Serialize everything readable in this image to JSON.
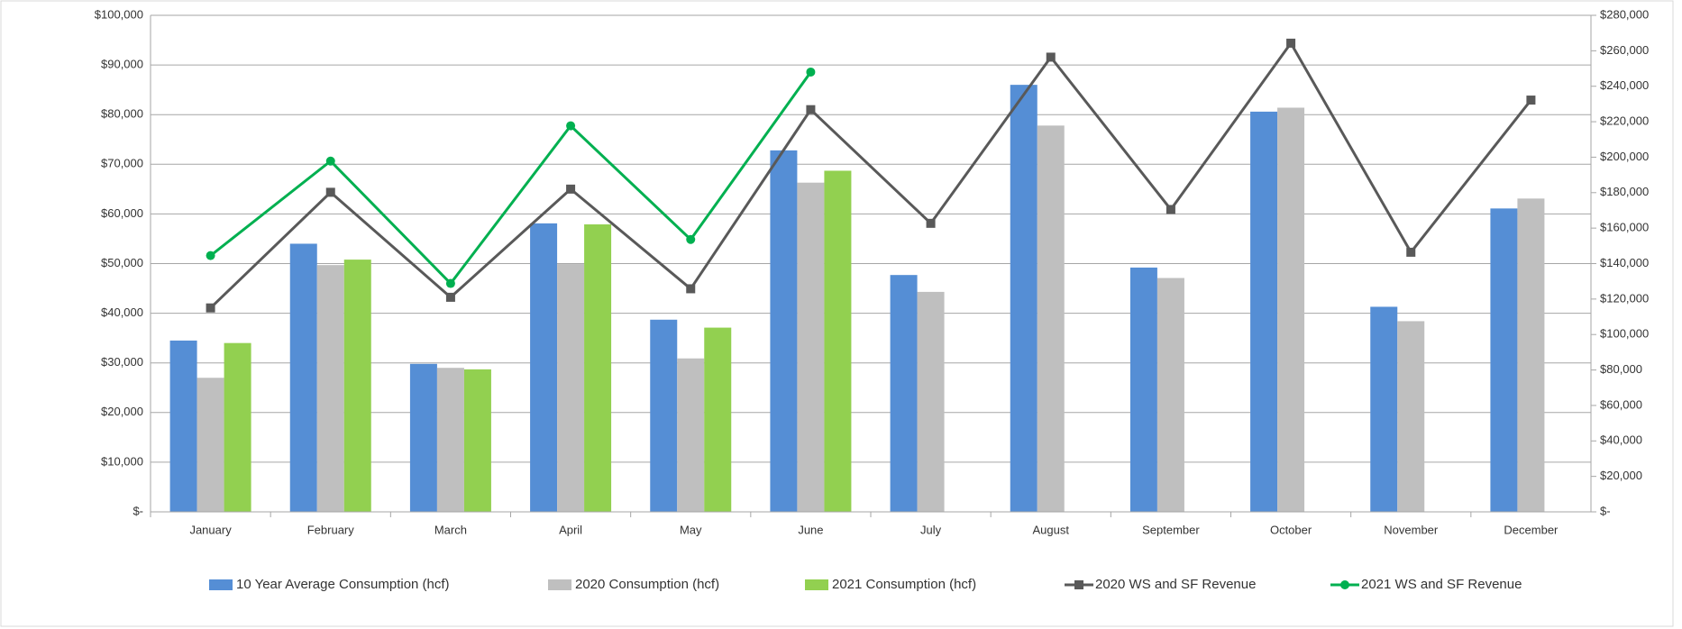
{
  "chart_data": {
    "type": "bar-line",
    "categories": [
      "January",
      "February",
      "March",
      "April",
      "May",
      "June",
      "July",
      "August",
      "September",
      "October",
      "November",
      "December"
    ],
    "series": [
      {
        "name": "10 Year Average Consumption (hcf)",
        "color": "#558ed5",
        "type": "bar",
        "values": [
          34500,
          54000,
          29800,
          58100,
          38700,
          72800,
          47700,
          86000,
          49200,
          80600,
          41300,
          61100
        ]
      },
      {
        "name": "2020 Consumption (hcf)",
        "color": "#bfbfbf",
        "type": "bar",
        "values": [
          27000,
          49700,
          29000,
          49900,
          30900,
          66300,
          44300,
          77800,
          47100,
          81400,
          38400,
          63100
        ]
      },
      {
        "name": "2021 Consumption (hcf)",
        "color": "#92d050",
        "type": "bar",
        "values": [
          34000,
          50800,
          28700,
          57900,
          37100,
          68700,
          null,
          null,
          null,
          null,
          null,
          null
        ]
      },
      {
        "name": "2020 WS and SF Revenue",
        "color": "#595959",
        "type": "line",
        "axis": "y2",
        "marker": "square",
        "values": [
          115000,
          180200,
          121000,
          182000,
          125800,
          226800,
          162700,
          256400,
          170500,
          264300,
          146400,
          232200
        ]
      },
      {
        "name": "2021 WS and SF Revenue",
        "color": "#00b050",
        "type": "line",
        "axis": "y2",
        "marker": "circle",
        "values": [
          144500,
          197800,
          128800,
          217700,
          153600,
          248000,
          null,
          null,
          null,
          null,
          null,
          null
        ]
      }
    ],
    "ylim": [
      0,
      100000
    ],
    "yticks": [
      {
        "value": 0,
        "label": "$-"
      },
      {
        "value": 10000,
        "label": "$10,000"
      },
      {
        "value": 20000,
        "label": "$20,000"
      },
      {
        "value": 30000,
        "label": "$30,000"
      },
      {
        "value": 40000,
        "label": "$40,000"
      },
      {
        "value": 50000,
        "label": "$50,000"
      },
      {
        "value": 60000,
        "label": "$60,000"
      },
      {
        "value": 70000,
        "label": "$70,000"
      },
      {
        "value": 80000,
        "label": "$80,000"
      },
      {
        "value": 90000,
        "label": "$90,000"
      },
      {
        "value": 100000,
        "label": "$100,000"
      }
    ],
    "y2lim": [
      0,
      280000
    ],
    "y2ticks": [
      {
        "value": 0,
        "label": "$-"
      },
      {
        "value": 20000,
        "label": "$20,000"
      },
      {
        "value": 40000,
        "label": "$40,000"
      },
      {
        "value": 60000,
        "label": "$60,000"
      },
      {
        "value": 80000,
        "label": "$80,000"
      },
      {
        "value": 100000,
        "label": "$100,000"
      },
      {
        "value": 120000,
        "label": "$120,000"
      },
      {
        "value": 140000,
        "label": "$140,000"
      },
      {
        "value": 160000,
        "label": "$160,000"
      },
      {
        "value": 180000,
        "label": "$180,000"
      },
      {
        "value": 200000,
        "label": "$200,000"
      },
      {
        "value": 220000,
        "label": "$220,000"
      },
      {
        "value": 240000,
        "label": "$240,000"
      },
      {
        "value": 260000,
        "label": "$260,000"
      },
      {
        "value": 280000,
        "label": "$280,000"
      }
    ],
    "grid": true,
    "legend": "bottom"
  }
}
